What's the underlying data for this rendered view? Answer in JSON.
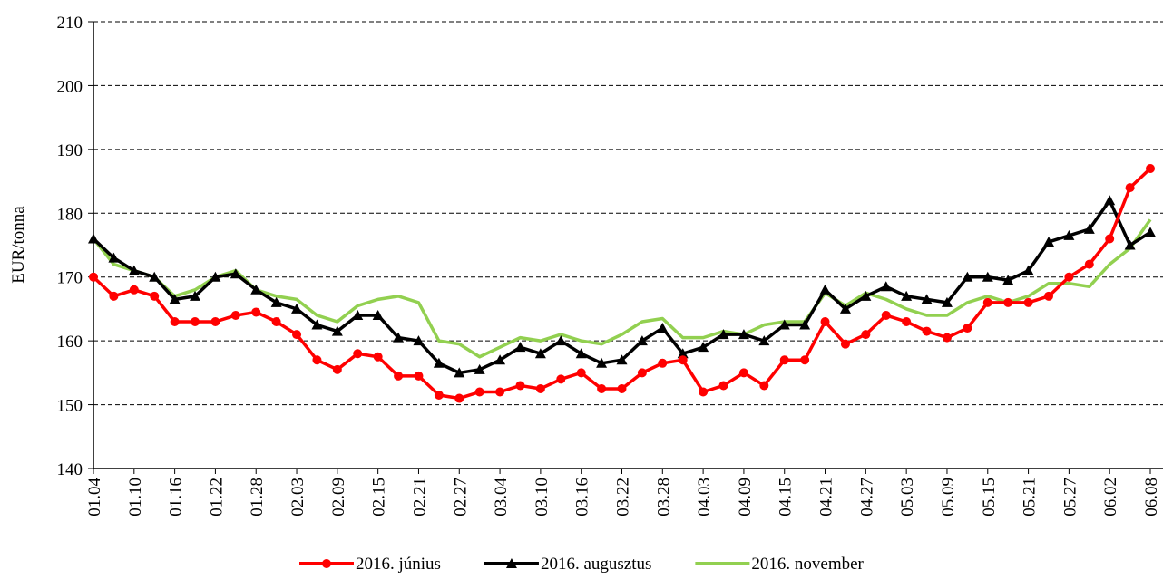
{
  "chart_data": {
    "type": "line",
    "y_label": "EUR/tonna",
    "categories": [
      "01.04",
      null,
      "01.10",
      null,
      "01.16",
      null,
      "01.22",
      null,
      "01.28",
      null,
      "02.03",
      null,
      "02.09",
      null,
      "02.15",
      null,
      "02.21",
      null,
      "02.27",
      null,
      "03.04",
      null,
      "03.10",
      null,
      "03.16",
      null,
      "03.22",
      null,
      "03.28",
      null,
      "04.03",
      null,
      "04.09",
      null,
      "04.15",
      null,
      "04.21",
      null,
      "04.27",
      null,
      "05.03",
      null,
      "05.09",
      null,
      "05.15",
      null,
      "05.21",
      null,
      "05.27",
      null,
      "06.02",
      null,
      "06.08"
    ],
    "series": [
      {
        "name": "2016. június",
        "color": "#ff0000",
        "marker": "circle",
        "values": [
          170,
          167,
          168,
          167,
          163,
          163,
          163,
          164,
          164.5,
          163,
          161,
          157,
          155.5,
          158,
          157.5,
          154.5,
          154.5,
          151.5,
          151,
          152,
          152,
          153,
          152.5,
          154,
          155,
          152.5,
          152.5,
          155,
          156.5,
          157,
          152,
          153,
          155,
          153,
          157,
          157,
          163,
          159.5,
          161,
          164,
          163,
          161.5,
          160.5,
          162,
          166,
          166,
          166,
          167,
          170,
          172,
          176,
          184,
          187
        ]
      },
      {
        "name": "2016. augusztus",
        "color": "#000000",
        "marker": "triangle",
        "values": [
          176,
          173,
          171,
          170,
          166.5,
          167,
          170,
          170.5,
          168,
          166,
          165,
          162.5,
          161.5,
          164,
          164,
          160.5,
          160,
          156.5,
          155,
          155.5,
          157,
          159,
          158,
          160,
          158,
          156.5,
          157,
          160,
          162,
          158,
          159,
          161,
          161,
          160,
          162.5,
          162.5,
          168,
          165,
          167,
          168.5,
          167,
          166.5,
          166,
          170,
          170,
          169.5,
          171,
          175.5,
          176.5,
          177.5,
          182,
          175,
          177
        ]
      },
      {
        "name": "2016. november",
        "color": "#92d050",
        "marker": "none",
        "values": [
          176,
          172,
          171,
          170,
          167,
          168,
          170,
          171,
          168,
          167,
          166.5,
          164,
          163,
          165.5,
          166.5,
          167,
          166,
          160,
          159.5,
          157.5,
          159,
          160.5,
          160,
          161,
          160,
          159.5,
          161,
          163,
          163.5,
          160.5,
          160.5,
          161.5,
          161,
          162.5,
          163,
          163,
          167.5,
          165.5,
          167.5,
          166.5,
          165,
          164,
          164,
          166,
          167,
          166,
          167,
          169,
          169,
          168.5,
          172,
          174.5,
          179
        ]
      }
    ],
    "ylim": [
      140,
      210
    ],
    "yticks": [
      140,
      150,
      160,
      170,
      180,
      190,
      200,
      210
    ],
    "grid": true,
    "legend": "bottom"
  }
}
